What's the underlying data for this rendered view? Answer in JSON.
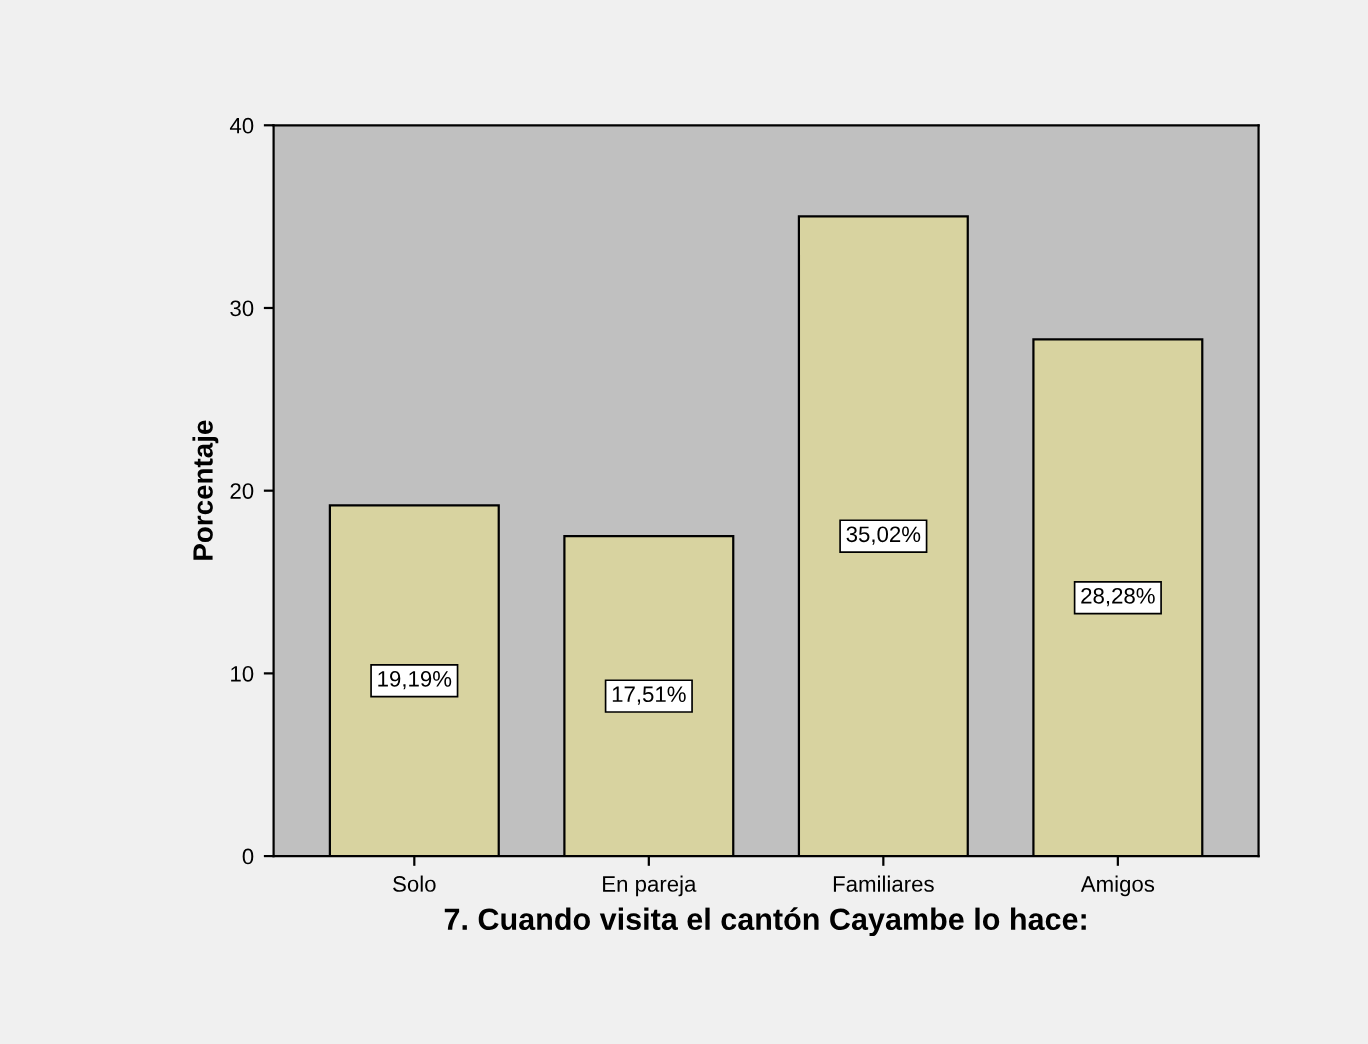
{
  "chart_data": {
    "type": "bar",
    "categories": [
      "Solo",
      "En pareja",
      "Familiares",
      "Amigos"
    ],
    "values": [
      19.19,
      17.51,
      35.02,
      28.28
    ],
    "value_labels": [
      "19,19%",
      "17,51%",
      "35,02%",
      "28,28%"
    ],
    "color": "#d8d3a0",
    "xlabel": "7. Cuando visita el cantón Cayambe lo hace:",
    "ylabel": "Porcentaje",
    "ylim": [
      0,
      40
    ],
    "yticks": [
      0,
      10,
      20,
      30,
      40
    ],
    "grid": false
  }
}
